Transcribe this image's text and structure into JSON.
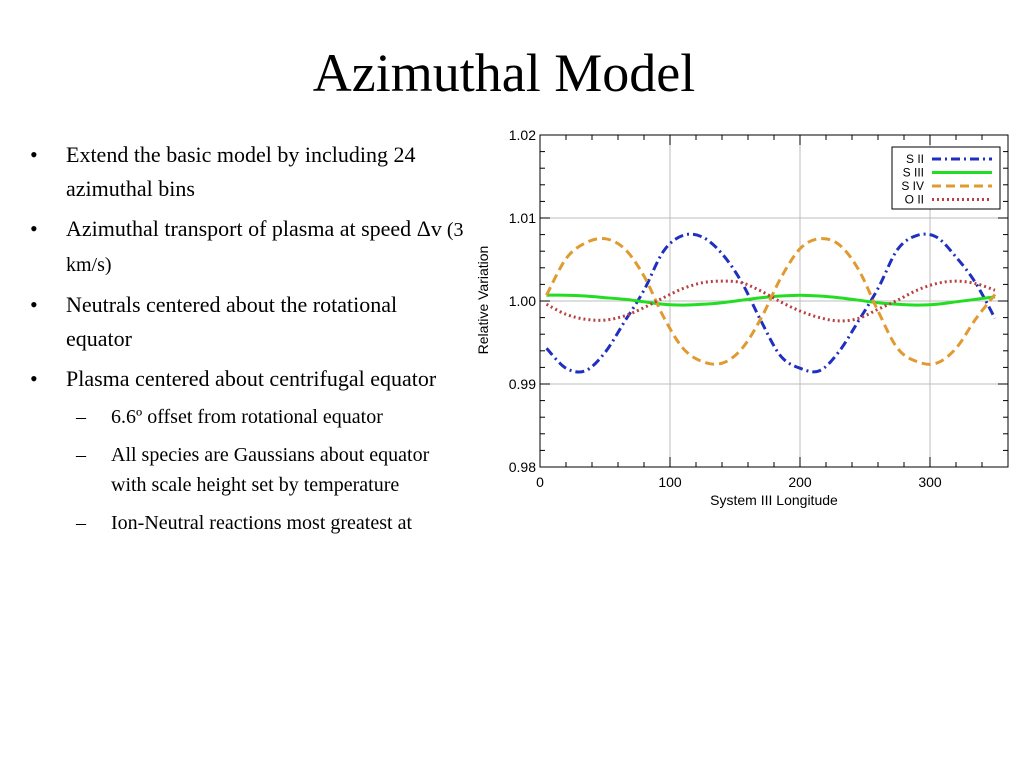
{
  "slide": {
    "title": "Azimuthal Model",
    "bullets": [
      {
        "text": "Extend the basic model by including 24 azimuthal bins"
      },
      {
        "text_main": "Azimuthal transport of plasma at speed ",
        "text_delta": "Δv",
        "text_tail": " (3 km/s)"
      },
      {
        "text": "Neutrals centered about the rotational equator"
      },
      {
        "text": "Plasma centered about centrifugal equator"
      }
    ],
    "subbullets": [
      {
        "text": "6.6º offset from rotational equator"
      },
      {
        "text": "All species are Gaussians about equator with scale height set by temperature"
      },
      {
        "text": "Ion-Neutral reactions most greatest at"
      }
    ],
    "bullet_mark": "•",
    "sub_mark": "–"
  },
  "chart_data": {
    "type": "line",
    "xlabel": "System III Longitude",
    "ylabel": "Relative Variation",
    "xlim": [
      0,
      360
    ],
    "ylim": [
      0.98,
      1.02
    ],
    "xticks": [
      {
        "v": 0,
        "label": "0"
      },
      {
        "v": 100,
        "label": "100"
      },
      {
        "v": 200,
        "label": "200"
      },
      {
        "v": 300,
        "label": "300"
      }
    ],
    "yticks": [
      {
        "v": 0.98,
        "label": "0.98"
      },
      {
        "v": 0.99,
        "label": "0.99"
      },
      {
        "v": 1.0,
        "label": "1.00"
      },
      {
        "v": 1.01,
        "label": "1.01"
      },
      {
        "v": 1.02,
        "label": "1.02"
      }
    ],
    "x": [
      5,
      20,
      35,
      50,
      65,
      80,
      95,
      110,
      125,
      140,
      155,
      170,
      185,
      200,
      215,
      230,
      245,
      260,
      275,
      290,
      305,
      320,
      335,
      350
    ],
    "legend_position": "top-right",
    "series": [
      {
        "name": "S II",
        "color": "#1f2fbf",
        "dash": "dashdot",
        "values": [
          0.9943,
          0.9919,
          0.9916,
          0.9938,
          0.9975,
          1.0013,
          1.006,
          1.0079,
          1.0077,
          1.0057,
          1.0023,
          0.9976,
          0.9934,
          0.9919,
          0.9916,
          0.9939,
          0.9976,
          1.0015,
          1.0062,
          1.0079,
          1.0077,
          1.0053,
          1.0022,
          0.9979
        ]
      },
      {
        "name": "S III",
        "color": "#22dd22",
        "dash": "solid",
        "values": [
          1.0007,
          1.0007,
          1.0006,
          1.0004,
          1.0002,
          0.9999,
          0.9996,
          0.9995,
          0.9996,
          0.9998,
          1.0001,
          1.0004,
          1.0006,
          1.0007,
          1.0006,
          1.0004,
          1.0001,
          0.9998,
          0.9996,
          0.9995,
          0.9996,
          0.9999,
          1.0002,
          1.0005
        ]
      },
      {
        "name": "S IV",
        "color": "#e09a30",
        "dash": "dashed",
        "values": [
          1.0007,
          1.0051,
          1.007,
          1.0075,
          1.0063,
          1.003,
          0.9981,
          0.9943,
          0.9927,
          0.9925,
          0.9942,
          0.9979,
          1.0027,
          1.0063,
          1.0075,
          1.0068,
          1.0038,
          0.9988,
          0.9943,
          0.9927,
          0.9925,
          0.9943,
          0.9978,
          1.0008
        ]
      },
      {
        "name": "O II",
        "color": "#b84040",
        "dash": "dotted",
        "values": [
          0.9996,
          0.9984,
          0.9978,
          0.9977,
          0.9982,
          0.9992,
          1.0004,
          1.0015,
          1.0022,
          1.0024,
          1.0022,
          1.0012,
          0.9999,
          0.9988,
          0.998,
          0.9976,
          0.9979,
          0.999,
          1.0001,
          1.0013,
          1.0021,
          1.0024,
          1.0021,
          1.0013
        ]
      }
    ]
  }
}
